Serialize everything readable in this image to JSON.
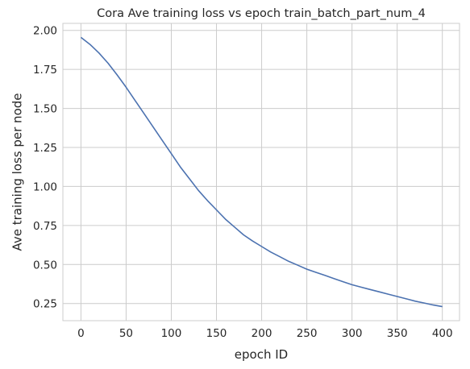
{
  "chart_data": {
    "type": "line",
    "title": "Cora Ave training loss vs epoch train_batch_part_num_4",
    "xlabel": "epoch ID",
    "ylabel": "Ave training loss per node",
    "xlim": [
      -20,
      419
    ],
    "ylim": [
      0.14,
      2.045
    ],
    "xticks": [
      0,
      50,
      100,
      150,
      200,
      250,
      300,
      350,
      400
    ],
    "yticks": [
      0.25,
      0.5,
      0.75,
      1.0,
      1.25,
      1.5,
      1.75,
      2.0
    ],
    "xtick_labels": [
      "0",
      "50",
      "100",
      "150",
      "200",
      "250",
      "300",
      "350",
      "400"
    ],
    "ytick_labels": [
      "0.25",
      "0.50",
      "0.75",
      "1.00",
      "1.25",
      "1.50",
      "1.75",
      "2.00"
    ],
    "grid": true,
    "line_color": "#4c72b0",
    "grid_color": "#cccccc",
    "series": [
      {
        "x": [
          0,
          10,
          20,
          30,
          40,
          50,
          60,
          70,
          80,
          90,
          100,
          110,
          120,
          130,
          140,
          150,
          160,
          170,
          180,
          190,
          200,
          210,
          220,
          230,
          240,
          250,
          260,
          270,
          280,
          290,
          300,
          310,
          320,
          330,
          340,
          350,
          360,
          370,
          380,
          390,
          400
        ],
        "values": [
          1.955,
          1.91,
          1.855,
          1.79,
          1.715,
          1.635,
          1.55,
          1.465,
          1.38,
          1.295,
          1.21,
          1.125,
          1.05,
          0.975,
          0.91,
          0.85,
          0.79,
          0.74,
          0.69,
          0.65,
          0.615,
          0.58,
          0.55,
          0.52,
          0.495,
          0.47,
          0.45,
          0.43,
          0.41,
          0.39,
          0.37,
          0.355,
          0.34,
          0.325,
          0.31,
          0.295,
          0.28,
          0.265,
          0.253,
          0.24,
          0.23
        ]
      }
    ]
  }
}
